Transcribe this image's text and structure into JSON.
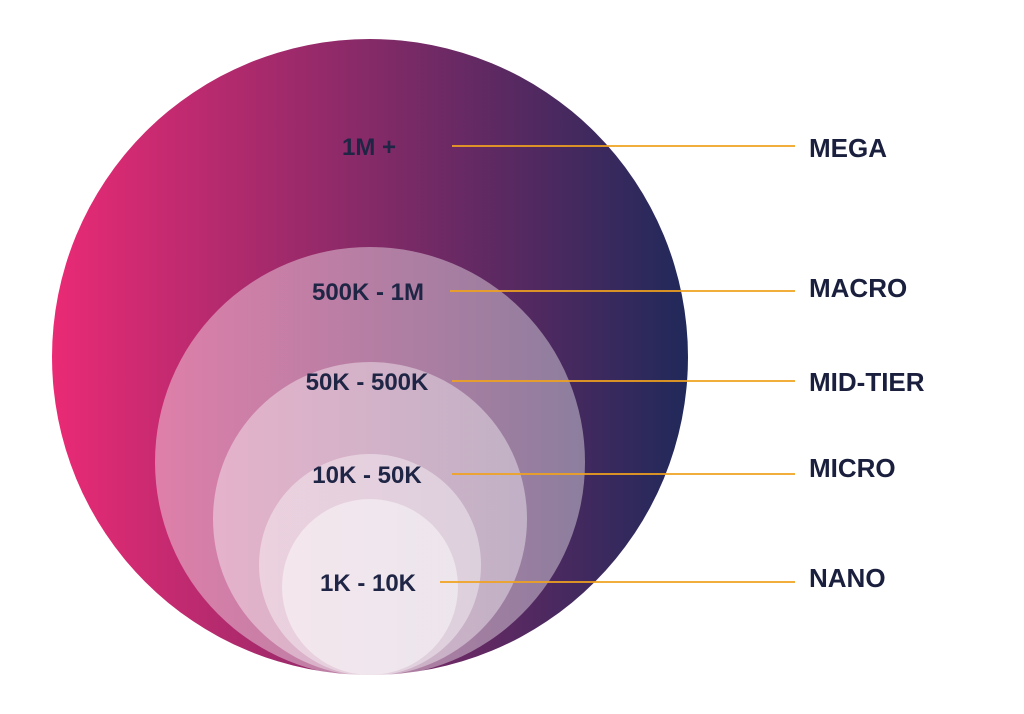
{
  "colors": {
    "outer_gradient_start": "#ea2a75",
    "outer_gradient_end": "#20295a",
    "inner_circle_fill": "#ffffff",
    "leader_line": "#f0a21f",
    "label_text": "#1a1f3d"
  },
  "tiers": [
    {
      "name": "MEGA",
      "range": "1M +"
    },
    {
      "name": "MACRO",
      "range": "500K - 1M"
    },
    {
      "name": "MID-TIER",
      "range": "50K - 500K"
    },
    {
      "name": "MICRO",
      "range": "10K - 50K"
    },
    {
      "name": "NANO",
      "range": "1K - 10K"
    }
  ]
}
